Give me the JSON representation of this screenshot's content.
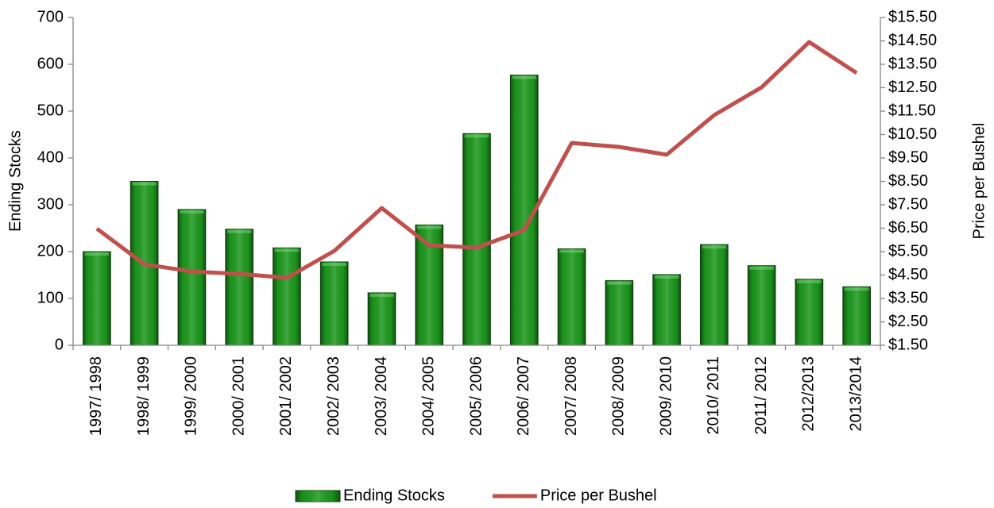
{
  "chart_data": {
    "type": "bar_line",
    "categories": [
      "1997/ 1998",
      "1998/ 1999",
      "1999/ 2000",
      "2000/ 2001",
      "2001/ 2002",
      "2002/ 2003",
      "2003/ 2004",
      "2004/ 2005",
      "2005/ 2006",
      "2006/ 2007",
      "2007/ 2008",
      "2008/ 2009",
      "2009/ 2010",
      "2010/ 2011",
      "2011/ 2012",
      "2012/2013",
      "2013/2014"
    ],
    "series": [
      {
        "name": "Ending Stocks",
        "type": "bar",
        "color": "#1e9a1e",
        "values": [
          200,
          350,
          290,
          248,
          208,
          178,
          112,
          257,
          452,
          577,
          206,
          138,
          151,
          215,
          170,
          141,
          125
        ]
      },
      {
        "name": "Price per Bushel",
        "type": "line",
        "axis": "y2",
        "color": "#c0504d",
        "values": [
          6.48,
          4.96,
          4.65,
          4.55,
          4.38,
          5.53,
          7.36,
          5.77,
          5.67,
          6.42,
          10.14,
          9.97,
          9.64,
          11.33,
          12.52,
          14.45,
          13.13
        ]
      }
    ],
    "ylabel": "Ending Stocks",
    "y2label": "Price per Bushel",
    "ylim": [
      0,
      700
    ],
    "yticks": [
      0,
      100,
      200,
      300,
      400,
      500,
      600,
      700
    ],
    "y2lim": [
      1.5,
      15.5
    ],
    "y2ticks": [
      {
        "value": 1.5,
        "label": "$1.50"
      },
      {
        "value": 2.5,
        "label": "$2.50"
      },
      {
        "value": 3.5,
        "label": "$3.50"
      },
      {
        "value": 4.5,
        "label": "$4.50"
      },
      {
        "value": 5.5,
        "label": "$5.50"
      },
      {
        "value": 6.5,
        "label": "$6.50"
      },
      {
        "value": 7.5,
        "label": "$7.50"
      },
      {
        "value": 8.5,
        "label": "$8.50"
      },
      {
        "value": 9.5,
        "label": "$9.50"
      },
      {
        "value": 10.5,
        "label": "$10.50"
      },
      {
        "value": 11.5,
        "label": "$11.50"
      },
      {
        "value": 12.5,
        "label": "$12.50"
      },
      {
        "value": 13.5,
        "label": "$13.50"
      },
      {
        "value": 14.5,
        "label": "$14.50"
      },
      {
        "value": 15.5,
        "label": "$15.50"
      }
    ],
    "grid": false,
    "legend": "bottom"
  }
}
